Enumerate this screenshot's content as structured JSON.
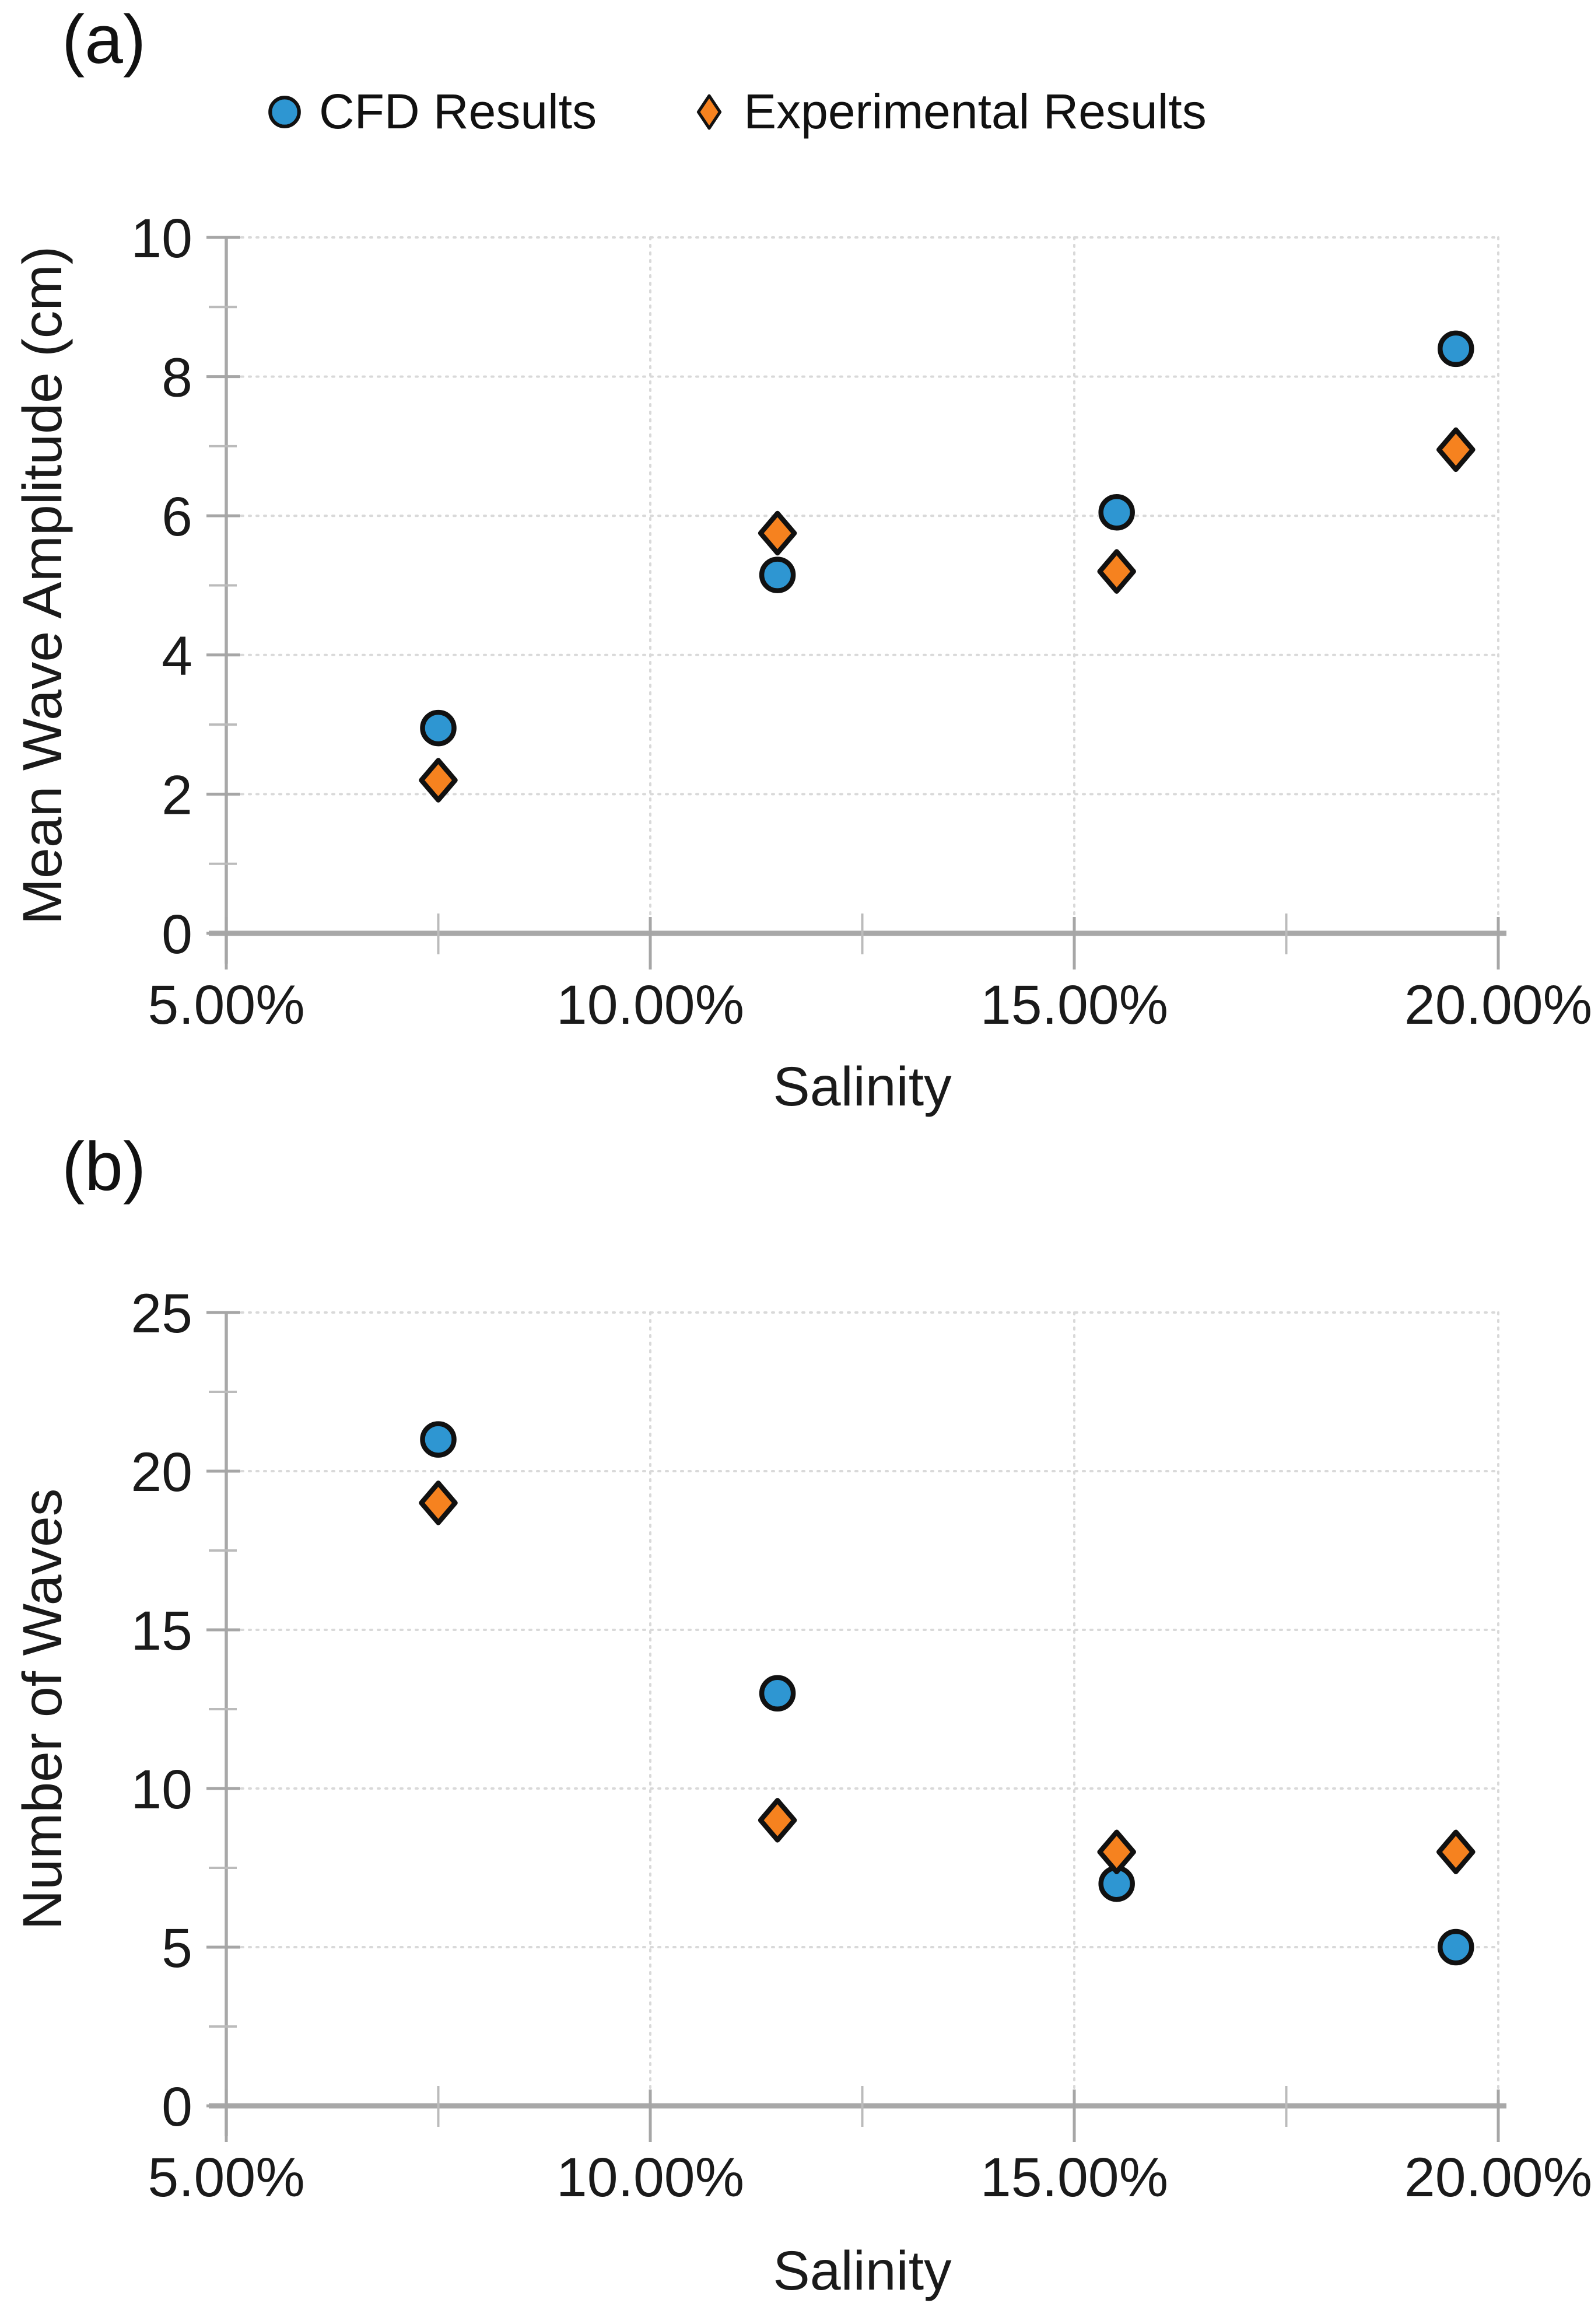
{
  "figure": {
    "panel_a_label": "(a)",
    "panel_b_label": "(b)"
  },
  "legend": {
    "items": [
      {
        "label": "CFD Results",
        "marker": "circle",
        "color": "#2E96D2"
      },
      {
        "label": "Experimental Results",
        "marker": "diamond",
        "color": "#F6821F"
      }
    ]
  },
  "colors": {
    "cfd_blue": "#2E96D2",
    "experimental_orange": "#F6821F",
    "marker_outline": "#111111",
    "gridline_gray": "#D9D9D9",
    "axis_gray": "#A6A6A6",
    "text": "#1A1A1A"
  },
  "chart_data": [
    {
      "panel": "a",
      "type": "scatter",
      "title": "",
      "xlabel": "Salinity",
      "ylabel": "Mean Wave Amplitude (cm)",
      "x_unit": "%",
      "xlim": [
        5,
        20
      ],
      "ylim": [
        0,
        10
      ],
      "grid": "major-dotted",
      "legend_position": "top",
      "x_ticks": {
        "values": [
          5,
          10,
          15,
          20
        ],
        "labels": [
          "5.00%",
          "10.00%",
          "15.00%",
          "20.00%"
        ]
      },
      "x_minor_ticks": [
        7.5,
        12.5,
        17.5
      ],
      "x_gridlines": [
        10,
        15,
        20
      ],
      "y_ticks": {
        "values": [
          0,
          2,
          4,
          6,
          8,
          10
        ],
        "labels": [
          "0",
          "2",
          "4",
          "6",
          "8",
          "10"
        ]
      },
      "y_minor_ticks": [
        1,
        3,
        5,
        7,
        9
      ],
      "series": [
        {
          "name": "CFD Results",
          "marker": "circle",
          "color": "#2E96D2",
          "x": [
            7.5,
            11.5,
            15.5,
            19.5
          ],
          "y": [
            2.95,
            5.15,
            6.05,
            8.4
          ]
        },
        {
          "name": "Experimental Results",
          "marker": "diamond",
          "color": "#F6821F",
          "x": [
            7.5,
            11.5,
            15.5,
            19.5
          ],
          "y": [
            2.2,
            5.75,
            5.2,
            6.95
          ]
        }
      ]
    },
    {
      "panel": "b",
      "type": "scatter",
      "title": "",
      "xlabel": "Salinity",
      "ylabel": "Number of Waves",
      "x_unit": "%",
      "xlim": [
        5,
        20
      ],
      "ylim": [
        0,
        25
      ],
      "grid": "major-dotted",
      "legend_position": "none",
      "x_ticks": {
        "values": [
          5,
          10,
          15,
          20
        ],
        "labels": [
          "5.00%",
          "10.00%",
          "15.00%",
          "20.00%"
        ]
      },
      "x_minor_ticks": [
        7.5,
        12.5,
        17.5
      ],
      "x_gridlines": [
        10,
        15,
        20
      ],
      "y_ticks": {
        "values": [
          0,
          5,
          10,
          15,
          20,
          25
        ],
        "labels": [
          "0",
          "5",
          "10",
          "15",
          "20",
          "25"
        ]
      },
      "y_minor_ticks": [
        2.5,
        7.5,
        12.5,
        17.5,
        22.5
      ],
      "series": [
        {
          "name": "CFD Results",
          "marker": "circle",
          "color": "#2E96D2",
          "x": [
            7.5,
            11.5,
            15.5,
            19.5
          ],
          "y": [
            21,
            13,
            7,
            5
          ]
        },
        {
          "name": "Experimental Results",
          "marker": "diamond",
          "color": "#F6821F",
          "x": [
            7.5,
            11.5,
            15.5,
            19.5
          ],
          "y": [
            19,
            9,
            8,
            8
          ]
        }
      ]
    }
  ]
}
